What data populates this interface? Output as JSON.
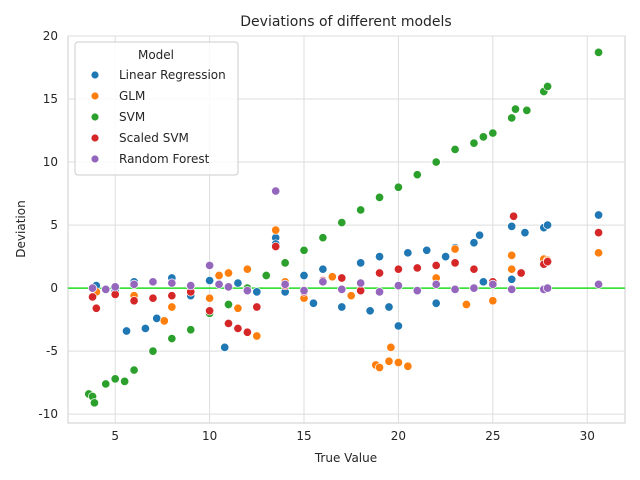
{
  "chart_data": {
    "type": "scatter",
    "title": "Deviations of different models",
    "xlabel": "True Value",
    "ylabel": "Deviation",
    "xlim": [
      2.5,
      32.0
    ],
    "ylim": [
      -10.7,
      20.0
    ],
    "xticks": [
      5,
      10,
      15,
      20,
      25,
      30
    ],
    "yticks": [
      -10,
      -5,
      0,
      5,
      10,
      15,
      20
    ],
    "grid": true,
    "reference_line": {
      "y": 0,
      "color": "#22dd22"
    },
    "legend": {
      "title": "Model",
      "placement": "top-left",
      "entries": [
        "Linear Regression",
        "GLM",
        "SVM",
        "Scaled SVM",
        "Random Forest"
      ]
    },
    "series": [
      {
        "name": "Linear Regression",
        "color": "#1f77b4",
        "points": [
          [
            4.0,
            0.2
          ],
          [
            5.0,
            -0.2
          ],
          [
            5.6,
            -3.4
          ],
          [
            6.0,
            0.5
          ],
          [
            6.6,
            -3.2
          ],
          [
            7.2,
            -2.4
          ],
          [
            8.0,
            0.8
          ],
          [
            9.0,
            -0.6
          ],
          [
            10.0,
            0.6
          ],
          [
            10.8,
            -4.7
          ],
          [
            11.5,
            0.4
          ],
          [
            12.5,
            -0.3
          ],
          [
            13.5,
            4.0
          ],
          [
            13.5,
            3.5
          ],
          [
            14.0,
            -0.3
          ],
          [
            15.0,
            1.0
          ],
          [
            15.5,
            -1.2
          ],
          [
            16.0,
            1.5
          ],
          [
            17.0,
            -1.5
          ],
          [
            18.0,
            2.0
          ],
          [
            18.5,
            -1.8
          ],
          [
            19.0,
            2.5
          ],
          [
            19.5,
            -1.5
          ],
          [
            20.0,
            -3.0
          ],
          [
            20.5,
            2.8
          ],
          [
            21.5,
            3.0
          ],
          [
            22.0,
            -1.2
          ],
          [
            22.5,
            2.5
          ],
          [
            23.0,
            3.2
          ],
          [
            24.0,
            3.6
          ],
          [
            24.3,
            4.2
          ],
          [
            24.5,
            0.5
          ],
          [
            26.0,
            4.9
          ],
          [
            26.0,
            0.7
          ],
          [
            26.7,
            4.4
          ],
          [
            27.7,
            4.8
          ],
          [
            27.9,
            5.0
          ],
          [
            27.9,
            0.0
          ],
          [
            30.6,
            5.8
          ]
        ]
      },
      {
        "name": "GLM",
        "color": "#ff7f0e",
        "points": [
          [
            4.0,
            -0.3
          ],
          [
            5.0,
            0.1
          ],
          [
            6.0,
            -0.6
          ],
          [
            7.0,
            0.5
          ],
          [
            7.6,
            -2.6
          ],
          [
            8.0,
            -1.5
          ],
          [
            9.0,
            0.2
          ],
          [
            10.0,
            -0.8
          ],
          [
            10.5,
            1.0
          ],
          [
            11.0,
            1.2
          ],
          [
            11.5,
            -1.6
          ],
          [
            12.0,
            1.5
          ],
          [
            12.5,
            -3.8
          ],
          [
            13.5,
            4.6
          ],
          [
            14.0,
            0.5
          ],
          [
            15.0,
            -0.8
          ],
          [
            16.5,
            0.9
          ],
          [
            17.5,
            -0.6
          ],
          [
            18.8,
            -6.1
          ],
          [
            19.0,
            -6.3
          ],
          [
            19.5,
            -5.8
          ],
          [
            19.6,
            -4.7
          ],
          [
            20.0,
            -5.9
          ],
          [
            20.5,
            -6.2
          ],
          [
            22.0,
            0.8
          ],
          [
            23.0,
            3.1
          ],
          [
            23.6,
            -1.3
          ],
          [
            25.0,
            -1.0
          ],
          [
            26.0,
            2.6
          ],
          [
            26.0,
            1.5
          ],
          [
            27.7,
            2.3
          ],
          [
            27.9,
            2.2
          ],
          [
            30.6,
            2.8
          ]
        ]
      },
      {
        "name": "SVM",
        "color": "#2ca02c",
        "points": [
          [
            3.6,
            -8.4
          ],
          [
            3.8,
            -8.6
          ],
          [
            3.9,
            -9.1
          ],
          [
            4.5,
            -7.6
          ],
          [
            5.0,
            -7.2
          ],
          [
            5.5,
            -7.4
          ],
          [
            6.0,
            -6.5
          ],
          [
            7.0,
            -5.0
          ],
          [
            8.0,
            -4.0
          ],
          [
            9.0,
            -3.3
          ],
          [
            10.0,
            -2.0
          ],
          [
            11.0,
            -1.3
          ],
          [
            12.0,
            0.0
          ],
          [
            13.0,
            1.0
          ],
          [
            14.0,
            2.0
          ],
          [
            15.0,
            3.0
          ],
          [
            16.0,
            4.0
          ],
          [
            17.0,
            5.2
          ],
          [
            18.0,
            6.2
          ],
          [
            19.0,
            7.2
          ],
          [
            20.0,
            8.0
          ],
          [
            21.0,
            9.0
          ],
          [
            22.0,
            10.0
          ],
          [
            23.0,
            11.0
          ],
          [
            24.0,
            11.5
          ],
          [
            24.5,
            12.0
          ],
          [
            25.0,
            12.3
          ],
          [
            26.0,
            13.5
          ],
          [
            26.2,
            14.2
          ],
          [
            26.8,
            14.1
          ],
          [
            27.7,
            15.6
          ],
          [
            27.9,
            16.0
          ],
          [
            30.6,
            18.7
          ]
        ]
      },
      {
        "name": "Scaled SVM",
        "color": "#d62728",
        "points": [
          [
            3.8,
            -0.7
          ],
          [
            4.0,
            -1.6
          ],
          [
            5.0,
            -0.5
          ],
          [
            6.0,
            -1.0
          ],
          [
            7.0,
            -0.8
          ],
          [
            8.0,
            -0.6
          ],
          [
            9.0,
            -0.3
          ],
          [
            10.0,
            -1.8
          ],
          [
            11.0,
            -2.8
          ],
          [
            11.5,
            -3.2
          ],
          [
            12.0,
            -3.5
          ],
          [
            12.5,
            -1.5
          ],
          [
            13.5,
            3.3
          ],
          [
            14.0,
            0.2
          ],
          [
            15.0,
            -0.3
          ],
          [
            16.0,
            0.6
          ],
          [
            17.0,
            0.8
          ],
          [
            18.0,
            -0.2
          ],
          [
            19.0,
            1.2
          ],
          [
            20.0,
            1.5
          ],
          [
            21.0,
            1.6
          ],
          [
            22.0,
            1.8
          ],
          [
            23.0,
            2.0
          ],
          [
            24.0,
            1.5
          ],
          [
            25.0,
            0.5
          ],
          [
            26.1,
            5.7
          ],
          [
            26.5,
            1.2
          ],
          [
            27.7,
            1.9
          ],
          [
            27.9,
            2.1
          ],
          [
            30.6,
            4.4
          ]
        ]
      },
      {
        "name": "Random Forest",
        "color": "#9467bd",
        "points": [
          [
            3.8,
            0.0
          ],
          [
            4.5,
            -0.1
          ],
          [
            5.0,
            0.1
          ],
          [
            6.0,
            0.3
          ],
          [
            7.0,
            0.5
          ],
          [
            8.0,
            0.4
          ],
          [
            9.0,
            0.2
          ],
          [
            10.0,
            1.8
          ],
          [
            10.5,
            0.3
          ],
          [
            11.0,
            0.1
          ],
          [
            12.0,
            -0.2
          ],
          [
            13.5,
            7.7
          ],
          [
            14.0,
            0.3
          ],
          [
            15.0,
            -0.2
          ],
          [
            16.0,
            0.5
          ],
          [
            17.0,
            -0.1
          ],
          [
            18.0,
            0.4
          ],
          [
            19.0,
            -0.3
          ],
          [
            20.0,
            0.2
          ],
          [
            21.0,
            -0.2
          ],
          [
            22.0,
            0.3
          ],
          [
            23.0,
            -0.1
          ],
          [
            24.0,
            0.0
          ],
          [
            25.0,
            0.3
          ],
          [
            26.0,
            -0.1
          ],
          [
            27.7,
            -0.1
          ],
          [
            27.9,
            0.0
          ],
          [
            30.6,
            0.3
          ]
        ]
      }
    ]
  }
}
